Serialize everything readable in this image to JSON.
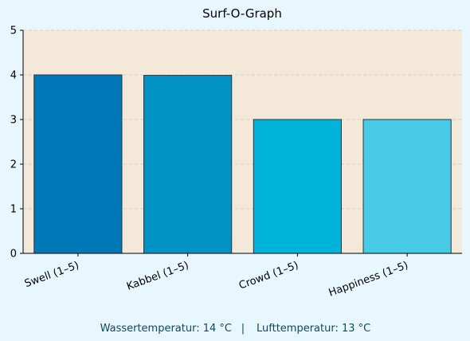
{
  "chart_data": {
    "type": "bar",
    "title": "Surf-O-Graph",
    "xlabel": "",
    "ylabel": "",
    "categories": [
      "Swell (1–5)",
      "Kabbel (1–5)",
      "Crowd (1–5)",
      "Happiness (1–5)"
    ],
    "values": [
      4,
      3.99,
      3,
      3
    ],
    "ylim": [
      0,
      5
    ],
    "yticks": [
      0,
      1,
      2,
      3,
      4,
      5
    ],
    "bar_colors": [
      "#0077b6",
      "#0093c4",
      "#00b3d8",
      "#48cae4"
    ],
    "bar_edge_color": "#1f3a45",
    "plot_background": "#f4e9d9",
    "page_background": "#e8f6fe",
    "grid": true,
    "grid_axis": "y",
    "grid_style": "dashed",
    "legend": false
  },
  "footer": {
    "water_temp": "Wassertemperatur: 14 °C",
    "separator": "|",
    "air_temp": "Lufttemperatur: 13 °C"
  }
}
